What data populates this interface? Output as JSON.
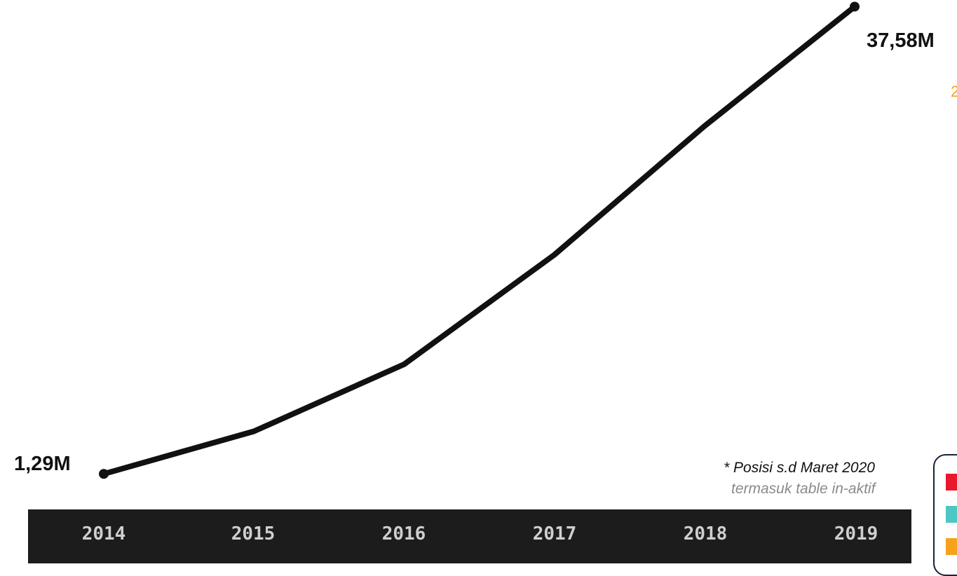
{
  "chart_data": {
    "type": "line",
    "categories": [
      "2014",
      "2015",
      "2016",
      "2017",
      "2018",
      "2019"
    ],
    "values": [
      1.29,
      4.6,
      9.8,
      18.3,
      28.3,
      37.58
    ],
    "first_label": "1,29M",
    "last_label": "37,58M",
    "ylim": [
      0,
      40
    ],
    "line_color": "#111111",
    "axis_band_color": "#1c1c1c"
  },
  "notes": {
    "position": "* Posisi s.d Maret 2020",
    "scope": "termasuk table in-aktif",
    "partial_right": "2"
  },
  "legend": {
    "colors": [
      "#e8192c",
      "#4cc7c4",
      "#f7a21b"
    ]
  }
}
